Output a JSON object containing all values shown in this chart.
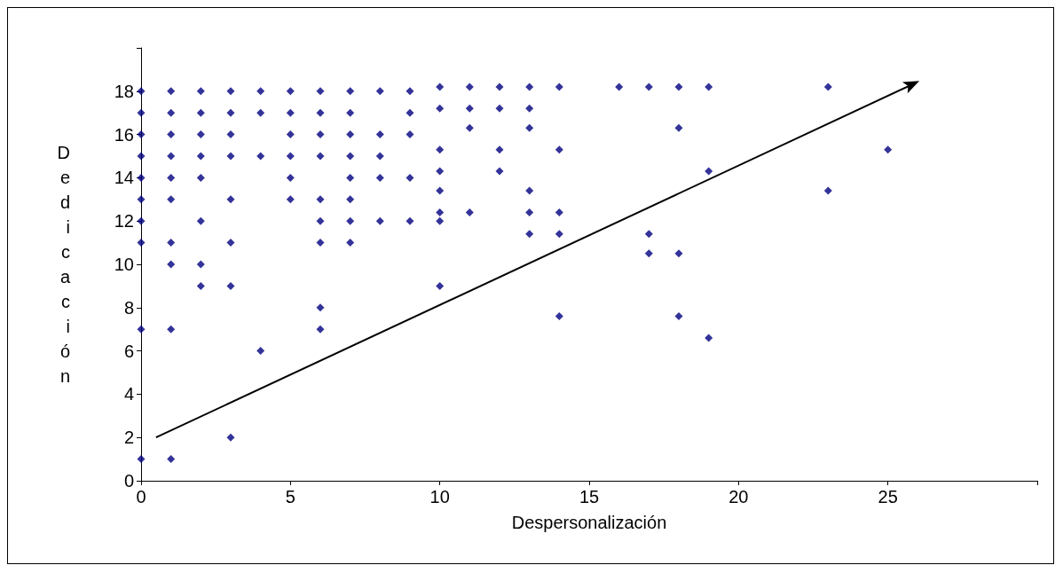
{
  "chart_data": {
    "type": "scatter",
    "xlabel": "Despersonalización",
    "ylabel": "Dedicación",
    "xlim": [
      0,
      30
    ],
    "ylim": [
      0,
      20
    ],
    "xticks": [
      0,
      5,
      10,
      15,
      20,
      25,
      {
        "value": 30,
        "label": null
      }
    ],
    "yticks": [
      0,
      2,
      4,
      6,
      8,
      10,
      12,
      14,
      16,
      18,
      {
        "value": 20,
        "label": null
      }
    ],
    "grid": false,
    "marker": "diamond",
    "series": [
      {
        "color": "#000080",
        "x": [
          0,
          0,
          0,
          0,
          0,
          0,
          0,
          0,
          0,
          0,
          1,
          1,
          1,
          1,
          1,
          1,
          1,
          1,
          1,
          1,
          2,
          2,
          2,
          2,
          2,
          2,
          2,
          2,
          3,
          3,
          3,
          3,
          3,
          3,
          3,
          3,
          4,
          4,
          4,
          4,
          5,
          5,
          5,
          5,
          5,
          5,
          6,
          6,
          6,
          6,
          6,
          6,
          6,
          6,
          6,
          7,
          7,
          7,
          7,
          7,
          7,
          7,
          7,
          8,
          8,
          8,
          8,
          8,
          9,
          9,
          9,
          9,
          9,
          10,
          10,
          10,
          10,
          10,
          10,
          10,
          10,
          11,
          11,
          11,
          11,
          12,
          12,
          12,
          12,
          13,
          13,
          13,
          13,
          13,
          13,
          14,
          14,
          14,
          14,
          14,
          16,
          17,
          17,
          17,
          18,
          18,
          18,
          18,
          19,
          19,
          19,
          23,
          23,
          25
        ],
        "values": [
          18,
          17,
          16,
          15,
          14,
          13,
          12,
          11,
          7,
          1,
          18,
          17,
          16,
          15,
          14,
          13,
          11,
          10,
          7,
          1,
          18,
          17,
          16,
          15,
          14,
          12,
          10,
          9,
          18,
          17,
          16,
          15,
          13,
          11,
          9,
          2,
          18,
          17,
          15,
          6,
          18,
          17,
          16,
          15,
          14,
          13,
          18,
          17,
          16,
          15,
          13,
          12,
          11,
          8,
          7,
          18,
          17,
          16,
          15,
          14,
          13,
          12,
          11,
          18,
          16,
          15,
          14,
          12,
          18,
          17,
          16,
          14,
          12,
          18.2,
          17.2,
          15.3,
          14.3,
          13.4,
          12.4,
          12,
          9,
          18.2,
          17.2,
          16.3,
          12.4,
          18.2,
          17.2,
          15.3,
          14.3,
          18.2,
          17.2,
          16.3,
          13.4,
          12.4,
          11.4,
          18.2,
          15.3,
          12.4,
          11.4,
          7.6,
          18.2,
          18.2,
          11.4,
          10.5,
          18.2,
          16.3,
          10.5,
          7.6,
          18.2,
          14.3,
          6.6,
          18.2,
          13.4,
          15.3
        ]
      },
      {
        "type": "line",
        "color": "#000000",
        "x": [
          0.5,
          25.8
        ],
        "values": [
          2,
          18.3
        ]
      }
    ]
  }
}
